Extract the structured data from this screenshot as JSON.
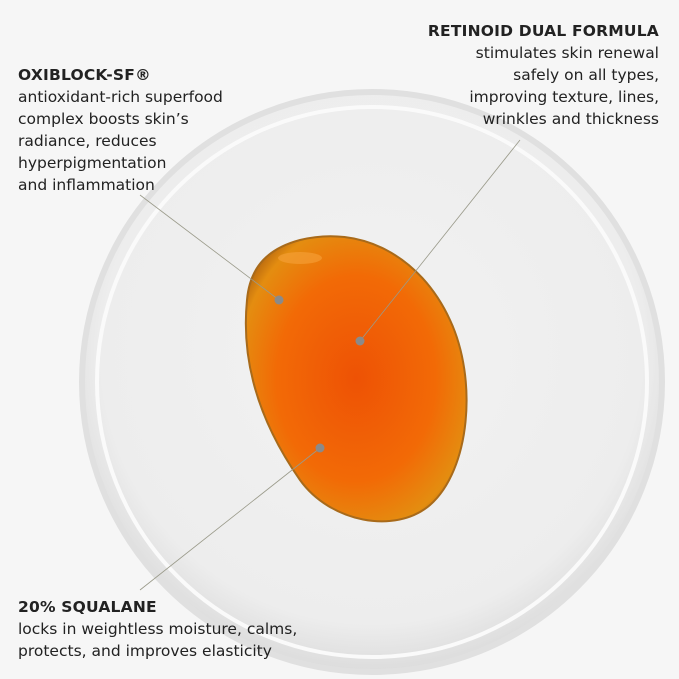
{
  "callouts": [
    {
      "title": "OXIBLOCK-SF®",
      "lines": [
        "antioxidant-rich superfood",
        "complex boosts skin’s",
        "radiance, reduces",
        "hyperpigmentation",
        "and inflammation"
      ]
    },
    {
      "title": "RETINOID DUAL FORMULA",
      "lines": [
        "stimulates skin renewal",
        "safely on all types,",
        "improving texture, lines,",
        "wrinkles and thickness"
      ]
    },
    {
      "title": "20% SQUALANE",
      "lines": [
        "locks in weightless moisture, calms,",
        "protects, and improves elasticity"
      ]
    }
  ],
  "colors": {
    "background": "#f6f6f6",
    "oil_center": "#ee5a08",
    "oil_edge": "#d98a0a",
    "dot": "#8a8a8a"
  }
}
